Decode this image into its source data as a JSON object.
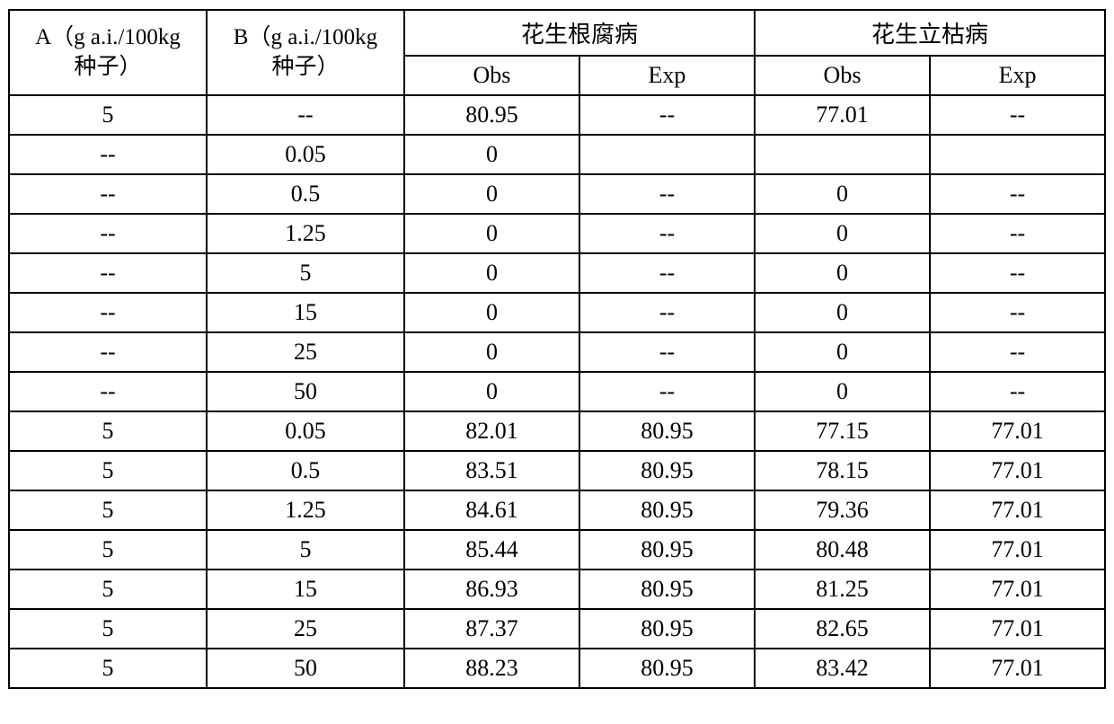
{
  "table": {
    "headers": {
      "colA": "A（g a.i./100kg\n种子）",
      "colB": "B（g a.i./100kg\n种子）",
      "group1": "花生根腐病",
      "group2": "花生立枯病",
      "sub1": "Obs",
      "sub2": "Exp",
      "sub3": "Obs",
      "sub4": "Exp"
    },
    "rows": [
      [
        "5",
        "--",
        "80.95",
        "--",
        "77.01",
        "--"
      ],
      [
        "--",
        "0.05",
        "0",
        "",
        "",
        ""
      ],
      [
        "--",
        "0.5",
        "0",
        "--",
        "0",
        "--"
      ],
      [
        "--",
        "1.25",
        "0",
        "--",
        "0",
        "--"
      ],
      [
        "--",
        "5",
        "0",
        "--",
        "0",
        "--"
      ],
      [
        "--",
        "15",
        "0",
        "--",
        "0",
        "--"
      ],
      [
        "--",
        "25",
        "0",
        "--",
        "0",
        "--"
      ],
      [
        "--",
        "50",
        "0",
        "--",
        "0",
        "--"
      ],
      [
        "5",
        "0.05",
        "82.01",
        "80.95",
        "77.15",
        "77.01"
      ],
      [
        "5",
        "0.5",
        "83.51",
        "80.95",
        "78.15",
        "77.01"
      ],
      [
        "5",
        "1.25",
        "84.61",
        "80.95",
        "79.36",
        "77.01"
      ],
      [
        "5",
        "5",
        "85.44",
        "80.95",
        "80.48",
        "77.01"
      ],
      [
        "5",
        "15",
        "86.93",
        "80.95",
        "81.25",
        "77.01"
      ],
      [
        "5",
        "25",
        "87.37",
        "80.95",
        "82.65",
        "77.01"
      ],
      [
        "5",
        "50",
        "88.23",
        "80.95",
        "83.42",
        "77.01"
      ]
    ],
    "styling": {
      "border_color": "#000000",
      "border_width": "2px",
      "background_color": "#ffffff",
      "font_family": "Times New Roman",
      "cell_font_size": 26,
      "header_font_size": 25,
      "text_align": "center"
    }
  }
}
